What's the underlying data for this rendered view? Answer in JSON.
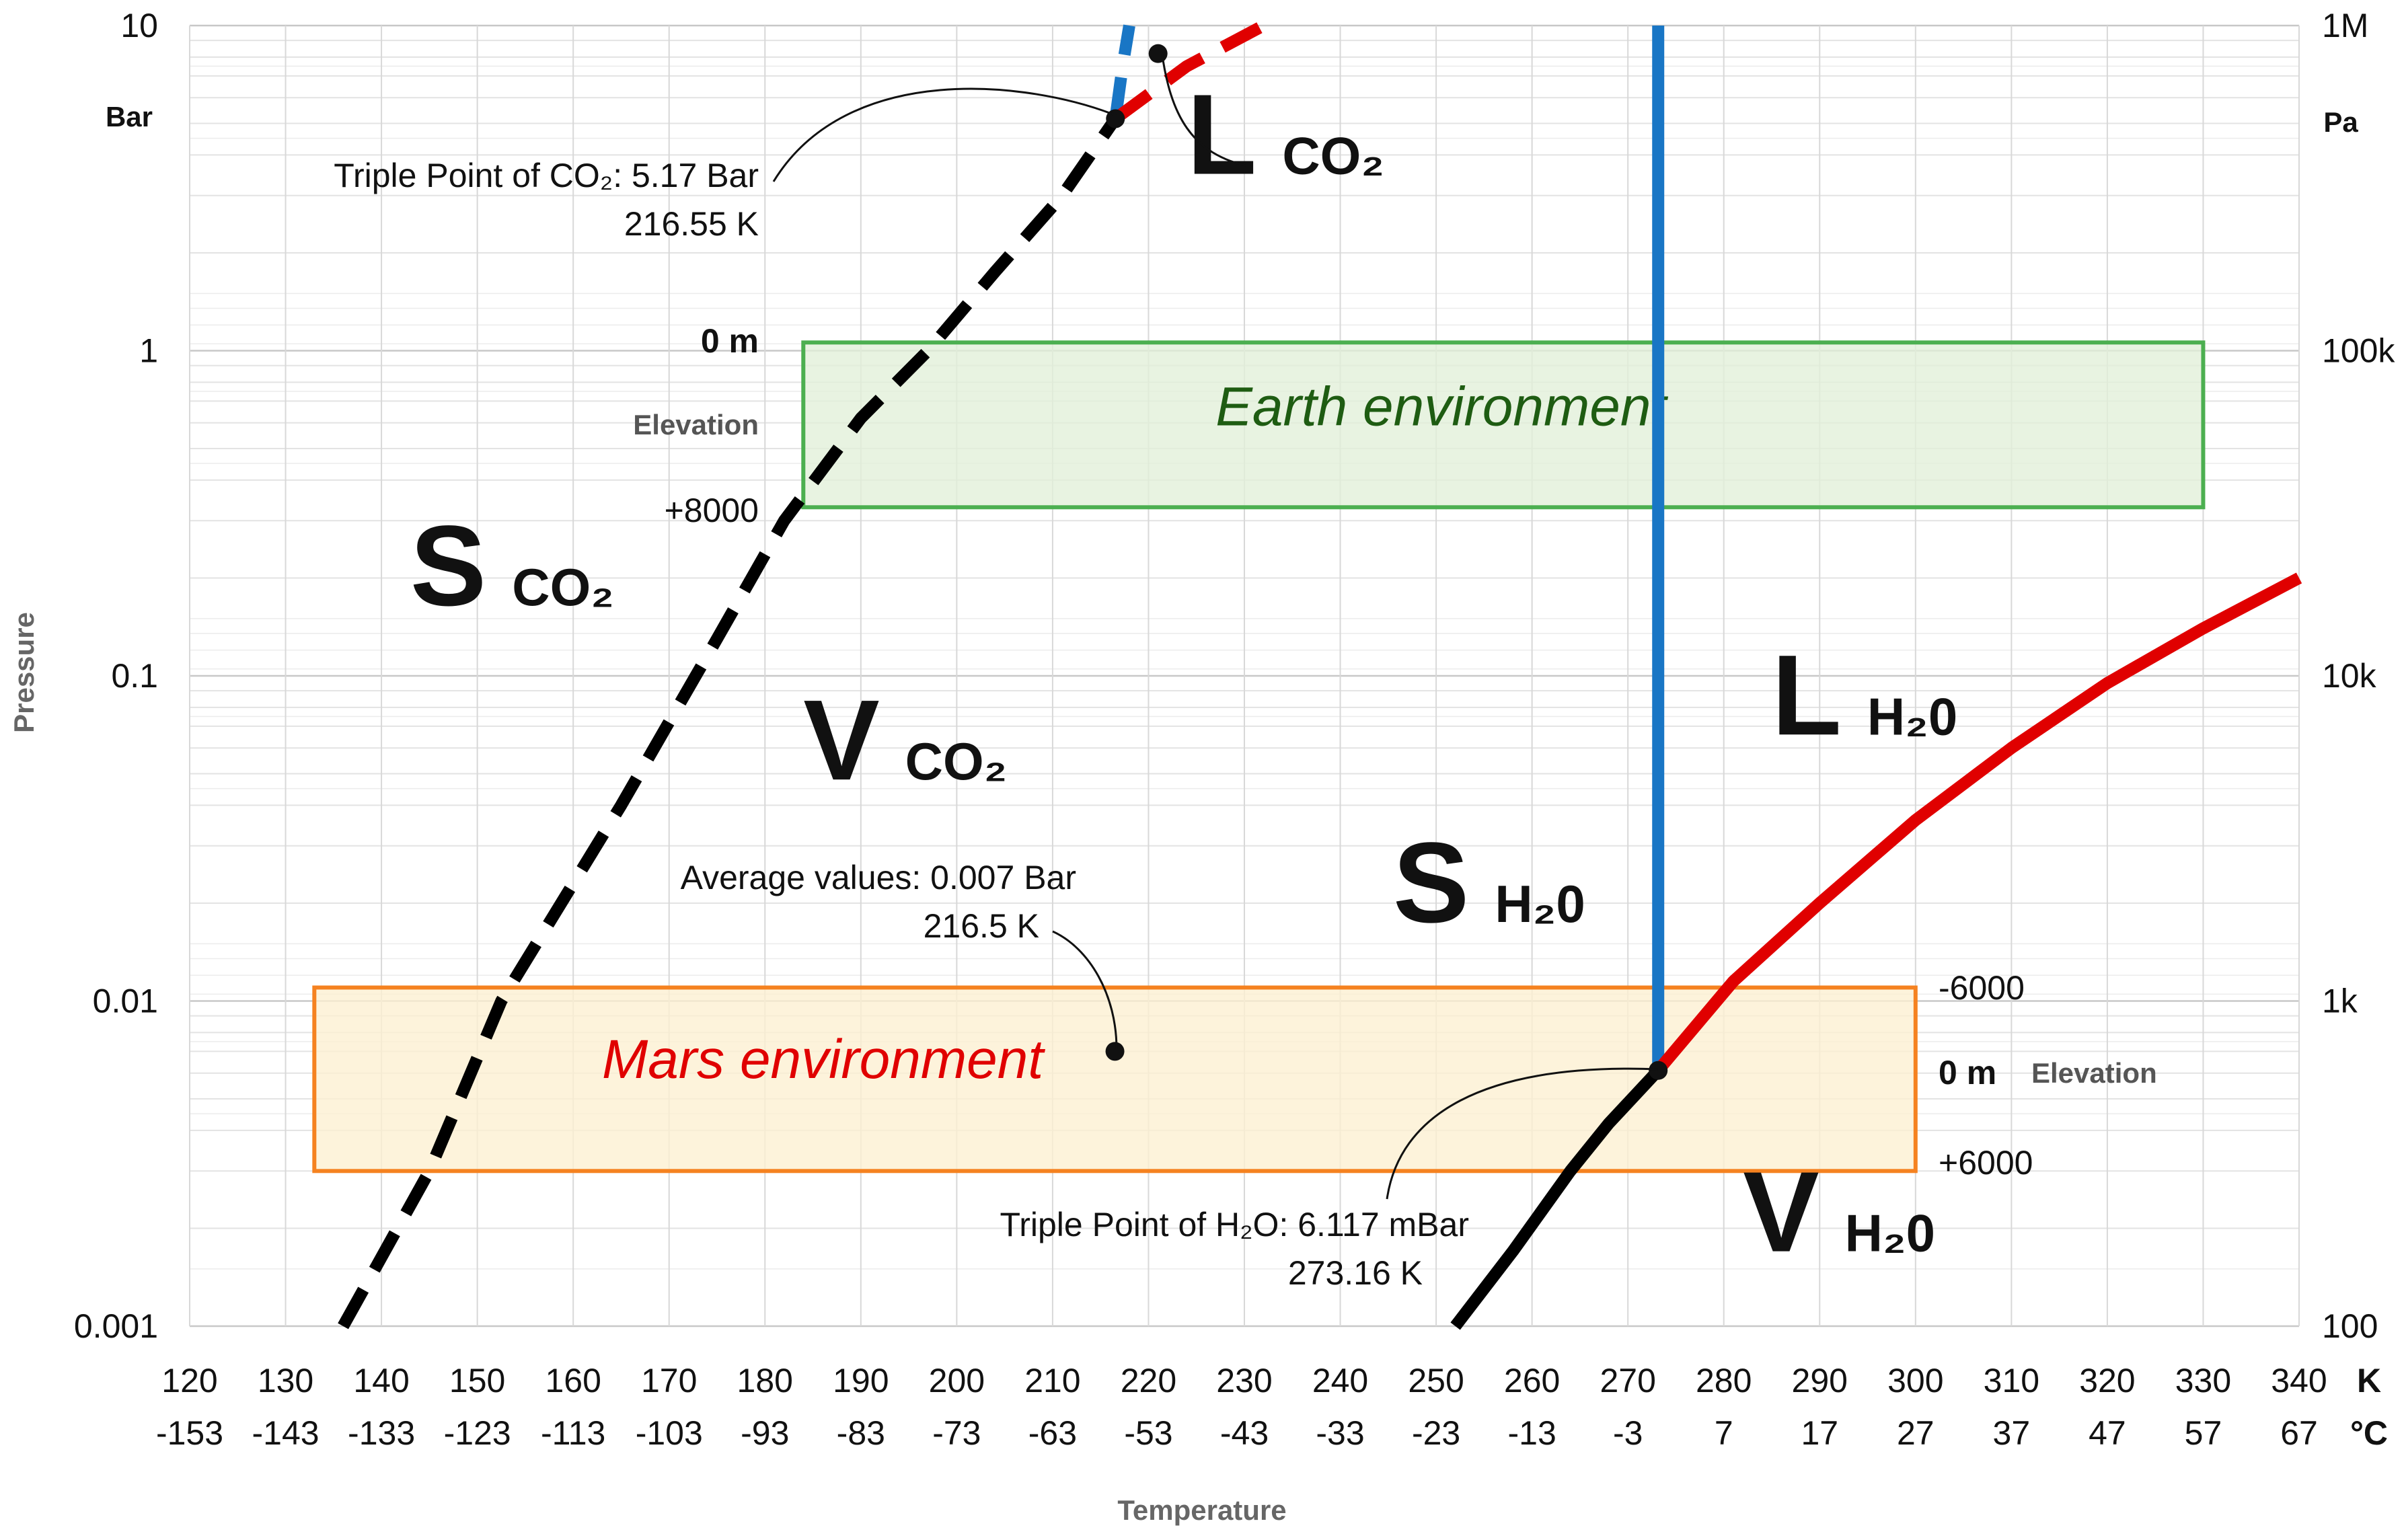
{
  "chart_data": {
    "type": "line",
    "title": "",
    "xlabel": "Temperature",
    "ylabel": "Pressure",
    "x_unit_primary": "K",
    "x_unit_secondary": "°C",
    "y_unit_left": "Bar",
    "y_unit_right": "Pa",
    "xlim": [
      120,
      340
    ],
    "ylim": [
      0.001,
      10
    ],
    "yscale": "log",
    "grid": true,
    "x_ticks_k": [
      "120",
      "130",
      "140",
      "150",
      "160",
      "170",
      "180",
      "190",
      "200",
      "210",
      "220",
      "230",
      "240",
      "250",
      "260",
      "270",
      "280",
      "290",
      "300",
      "310",
      "320",
      "330",
      "340"
    ],
    "x_ticks_c": [
      "-153",
      "-143",
      "-133",
      "-123",
      "-113",
      "-103",
      "-93",
      "-83",
      "-73",
      "-63",
      "-53",
      "-43",
      "-33",
      "-23",
      "-13",
      "-3",
      "7",
      "17",
      "27",
      "37",
      "47",
      "57",
      "67"
    ],
    "y_ticks_left": [
      {
        "value": 10,
        "label": "10"
      },
      {
        "value": 1,
        "label": "1"
      },
      {
        "value": 0.1,
        "label": "0.1"
      },
      {
        "value": 0.01,
        "label": "0.01"
      },
      {
        "value": 0.001,
        "label": "0.001"
      }
    ],
    "y_ticks_right": [
      {
        "value": 10,
        "label": "1M"
      },
      {
        "value": 1,
        "label": "100k"
      },
      {
        "value": 0.1,
        "label": "10k"
      },
      {
        "value": 0.01,
        "label": "1k"
      },
      {
        "value": 0.001,
        "label": "100"
      }
    ],
    "series": [
      {
        "name": "CO2 sublimation curve (solid-vapor)",
        "color": "#000000",
        "style": "dashed",
        "points": [
          [
            136,
            0.001
          ],
          [
            145,
            0.003
          ],
          [
            152.5,
            0.01
          ],
          [
            165,
            0.04
          ],
          [
            175,
            0.13
          ],
          [
            182,
            0.3
          ],
          [
            190,
            0.62
          ],
          [
            197,
            1.0
          ],
          [
            204,
            1.75
          ],
          [
            211,
            3.0
          ],
          [
            216.55,
            5.17
          ]
        ]
      },
      {
        "name": "CO2 melting curve (solid-liquid)",
        "color": "#1976C5",
        "style": "dashed",
        "points": [
          [
            216.55,
            5.17
          ],
          [
            217.3,
            7.5
          ],
          [
            218,
            10
          ]
        ]
      },
      {
        "name": "CO2 vaporization curve (liquid-vapor)",
        "color": "#E00000",
        "style": "dashed",
        "points": [
          [
            216.55,
            5.17
          ],
          [
            224,
            7.5
          ],
          [
            232,
            10
          ]
        ]
      },
      {
        "name": "H2O melting curve (solid-liquid)",
        "color": "#1976C5",
        "style": "solid",
        "points": [
          [
            273.16,
            0.006117
          ],
          [
            273.16,
            10
          ]
        ]
      },
      {
        "name": "H2O vaporization curve (liquid-vapor)",
        "color": "#E00000",
        "style": "solid",
        "points": [
          [
            273.16,
            0.006117
          ],
          [
            281,
            0.0115
          ],
          [
            290,
            0.02
          ],
          [
            300,
            0.036
          ],
          [
            310,
            0.06
          ],
          [
            320,
            0.095
          ],
          [
            330,
            0.14
          ],
          [
            340,
            0.2
          ]
        ]
      },
      {
        "name": "H2O sublimation curve (solid-vapor)",
        "color": "#000000",
        "style": "solid",
        "points": [
          [
            252,
            0.001
          ],
          [
            258,
            0.0017
          ],
          [
            264,
            0.003
          ],
          [
            268,
            0.0042
          ],
          [
            273.16,
            0.006117
          ]
        ]
      }
    ],
    "points": [
      {
        "name": "Triple Point of CO2",
        "x": 216.55,
        "y": 5.17
      },
      {
        "name": "CO2 liquid label pointer",
        "x": 221,
        "y": 8.2
      },
      {
        "name": "Mars average",
        "x": 216.5,
        "y": 0.007
      },
      {
        "name": "Triple Point of H2O",
        "x": 273.16,
        "y": 0.006117
      }
    ],
    "regions": [
      {
        "name": "Earth environment",
        "label": "Earth environment",
        "x": [
          184,
          330
        ],
        "y": [
          0.33,
          1.06
        ],
        "fill": "#E2F0D9",
        "stroke": "#4CAF50",
        "text_color": "#1E5C12",
        "text_x": 227,
        "text_y": 0.59
      },
      {
        "name": "Mars environment",
        "label": "Mars environment",
        "x": [
          133,
          300
        ],
        "y": [
          0.003,
          0.011
        ],
        "fill": "#FDEFD1",
        "stroke": "#F58220",
        "text_color": "#E00000",
        "text_x": 163,
        "text_y": 0.0058
      }
    ],
    "annotations": {
      "co2_triple_line1": "Triple Point of CO₂: 5.17 Bar",
      "co2_triple_line2": "216.55 K",
      "mars_avg_line1": "Average values: 0.007 Bar",
      "mars_avg_line2": "216.5 K",
      "h2o_triple_line1": "Triple Point of H₂O: 6.117 mBar",
      "h2o_triple_line2": "273.16 K",
      "earth_elev_top": "0 m",
      "earth_elev_word": "Elevation",
      "earth_elev_bottom": "+8000",
      "mars_elev_top": "-6000",
      "mars_elev_mid": "0 m",
      "mars_elev_word": "Elevation",
      "mars_elev_bottom": "+6000"
    },
    "phase_labels": [
      {
        "name": "L-CO2",
        "big": "L",
        "sub": "CO₂",
        "x": 224,
        "y": 3.5
      },
      {
        "name": "S-CO2",
        "big": "S",
        "sub": "CO₂",
        "x": 143,
        "y": 0.165
      },
      {
        "name": "V-CO2",
        "big": "V",
        "sub": "CO₂",
        "x": 184,
        "y": 0.048
      },
      {
        "name": "L-H2O",
        "big": "L",
        "sub": "H₂0",
        "x": 285,
        "y": 0.066
      },
      {
        "name": "S-H2O",
        "big": "S",
        "sub": "H₂0",
        "x": 245.5,
        "y": 0.0175
      },
      {
        "name": "V-H2O",
        "big": "V",
        "sub": "H₂0",
        "x": 282,
        "y": 0.0017
      }
    ]
  }
}
